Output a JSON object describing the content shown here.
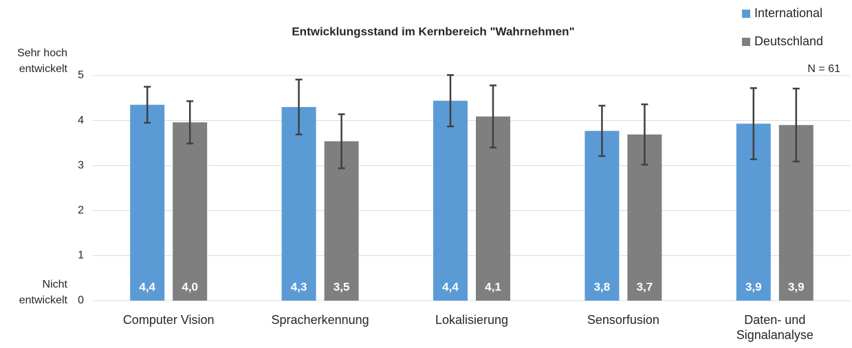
{
  "chart_data": {
    "type": "bar",
    "title": "Entwicklungsstand im Kernbereich \"Wahrnehmen\"",
    "annotations": [
      "Sehr hoch entwickelt",
      "Nicht entwickelt",
      "N = 61"
    ],
    "categories": [
      "Computer Vision",
      "Spracherkennung",
      "Lokalisierung",
      "Sensorfusion",
      "Daten- und Signalanalyse"
    ],
    "series": [
      {
        "name": "International",
        "color": "#5b9bd5",
        "values": [
          4.35,
          4.3,
          4.44,
          3.77,
          3.93
        ],
        "value_labels": [
          "4,4",
          "4,3",
          "4,4",
          "3,8",
          "3,9"
        ],
        "errors": [
          0.4,
          0.61,
          0.57,
          0.56,
          0.79
        ]
      },
      {
        "name": "Deutschland",
        "color": "#7f7f7f",
        "values": [
          3.96,
          3.54,
          4.09,
          3.69,
          3.9
        ],
        "value_labels": [
          "4,0",
          "3,5",
          "4,1",
          "3,7",
          "3,9"
        ],
        "errors": [
          0.47,
          0.6,
          0.69,
          0.67,
          0.81
        ]
      }
    ],
    "ylim": [
      0,
      5
    ],
    "yticks": [
      0,
      1,
      2,
      3,
      4,
      5
    ],
    "grid": true,
    "legend": "top-right"
  }
}
